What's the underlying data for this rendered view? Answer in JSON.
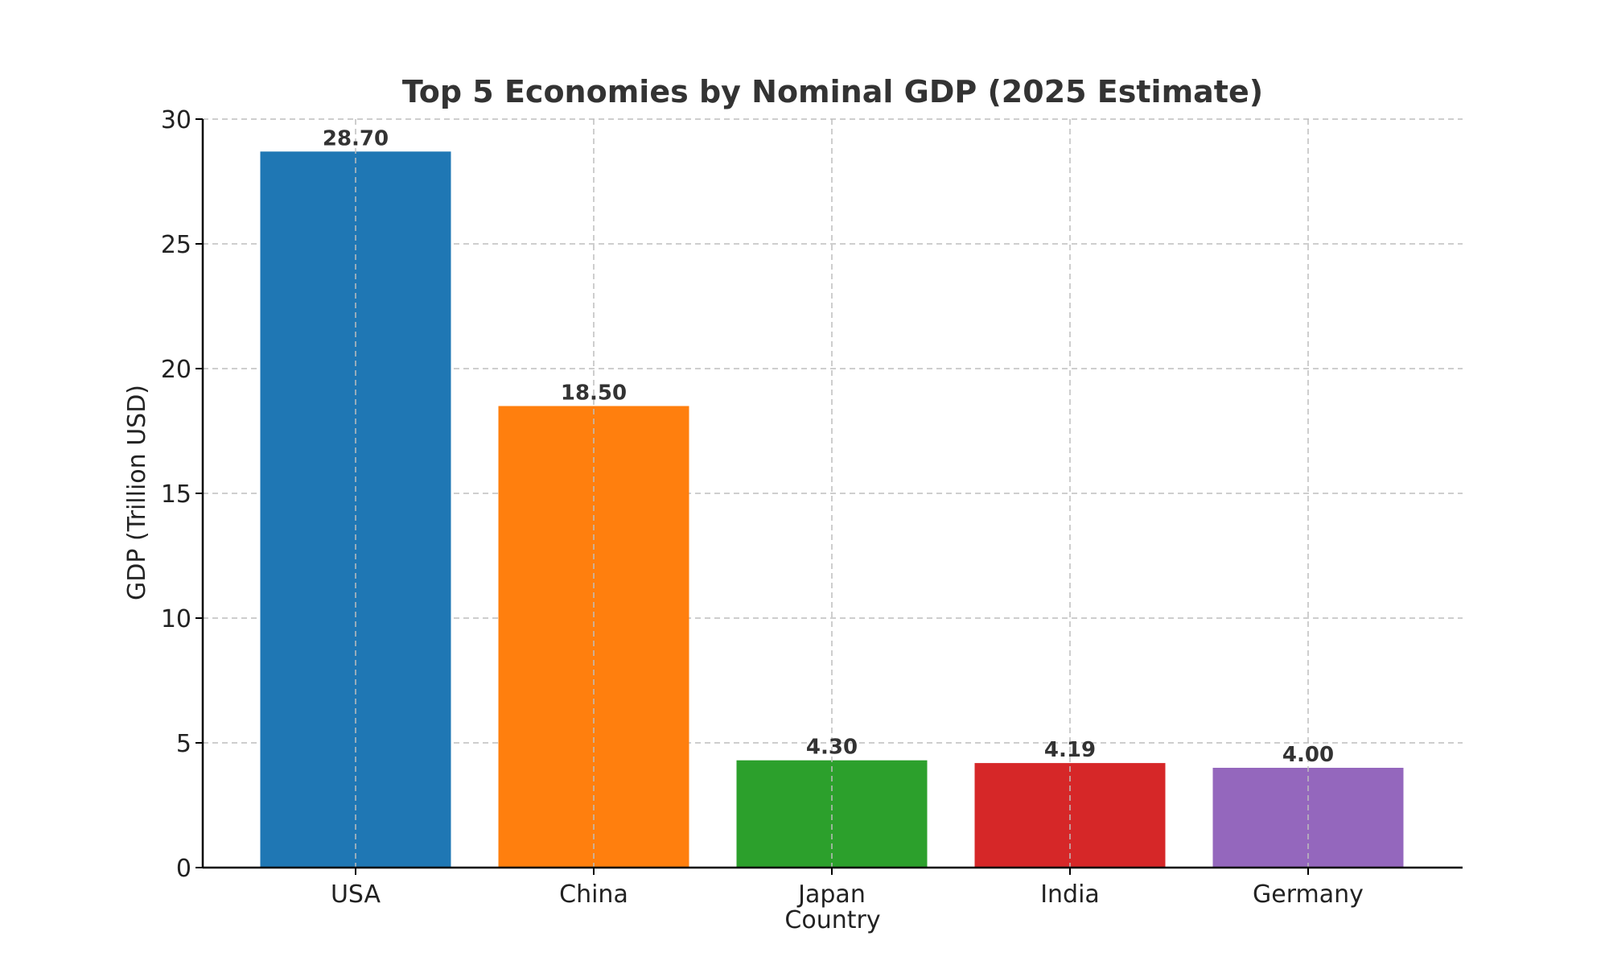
{
  "chart_data": {
    "type": "bar",
    "title": "Top 5 Economies by Nominal GDP (2025 Estimate)",
    "xlabel": "Country",
    "ylabel": "GDP (Trillion USD)",
    "categories": [
      "USA",
      "China",
      "Japan",
      "India",
      "Germany"
    ],
    "values": [
      28.7,
      18.5,
      4.3,
      4.19,
      4.0
    ],
    "value_labels": [
      "28.70",
      "18.50",
      "4.30",
      "4.19",
      "4.00"
    ],
    "colors": [
      "#1f77b4",
      "#ff7f0e",
      "#2ca02c",
      "#d62728",
      "#9467bd"
    ],
    "ylim": [
      0,
      30
    ],
    "yticks": [
      0,
      5,
      10,
      15,
      20,
      25,
      30
    ],
    "grid": true,
    "legend": "none"
  }
}
